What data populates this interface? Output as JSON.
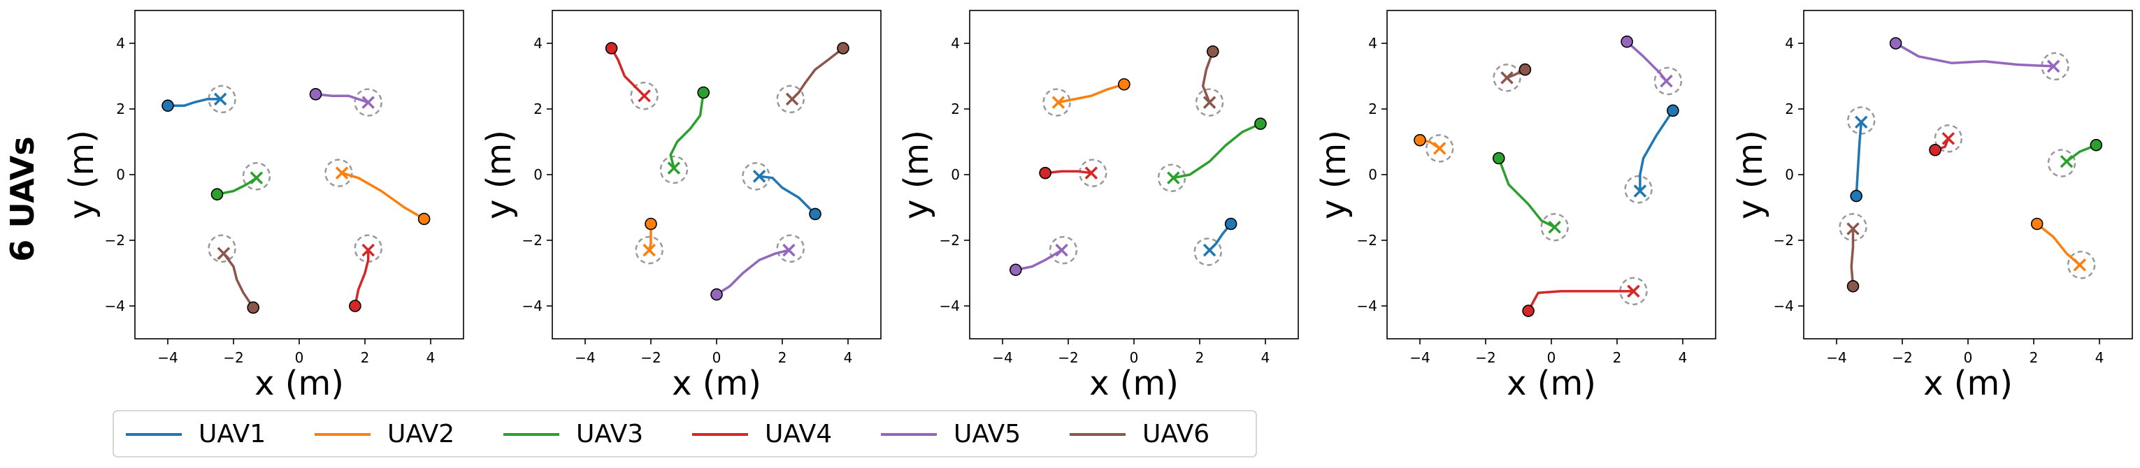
{
  "row_label": "6 UAVs",
  "legend": {
    "placement": "bottom-left",
    "entries": [
      {
        "name": "UAV1",
        "color": "#1f77b4"
      },
      {
        "name": "UAV2",
        "color": "#ff7f0e"
      },
      {
        "name": "UAV3",
        "color": "#2ca02c"
      },
      {
        "name": "UAV4",
        "color": "#d62728"
      },
      {
        "name": "UAV5",
        "color": "#9467bd"
      },
      {
        "name": "UAV6",
        "color": "#8c564b"
      }
    ]
  },
  "chart_data": [
    {
      "type": "line",
      "xlabel": "x (m)",
      "ylabel": "y (m)",
      "xlim": [
        -5,
        5
      ],
      "ylim": [
        -5,
        5
      ],
      "xticks": [
        -4,
        -2,
        0,
        2,
        4
      ],
      "yticks": [
        -4,
        -2,
        0,
        2,
        4
      ],
      "grid": false,
      "series": [
        {
          "name": "UAV1",
          "start": [
            -4.0,
            2.1
          ],
          "goal": [
            -2.35,
            2.3
          ],
          "path": [
            [
              -4.0,
              2.1
            ],
            [
              -3.5,
              2.1
            ],
            [
              -3.2,
              2.2
            ],
            [
              -2.8,
              2.3
            ],
            [
              -2.4,
              2.3
            ]
          ]
        },
        {
          "name": "UAV2",
          "start": [
            3.8,
            -1.35
          ],
          "goal": [
            1.2,
            0.05
          ],
          "path": [
            [
              3.8,
              -1.35
            ],
            [
              3.2,
              -1.0
            ],
            [
              2.5,
              -0.5
            ],
            [
              1.8,
              -0.1
            ],
            [
              1.3,
              0.05
            ]
          ]
        },
        {
          "name": "UAV3",
          "start": [
            -2.5,
            -0.6
          ],
          "goal": [
            -1.3,
            -0.05
          ],
          "path": [
            [
              -2.5,
              -0.6
            ],
            [
              -2.0,
              -0.5
            ],
            [
              -1.6,
              -0.3
            ],
            [
              -1.3,
              -0.1
            ]
          ]
        },
        {
          "name": "UAV4",
          "start": [
            1.7,
            -4.0
          ],
          "goal": [
            2.1,
            -2.25
          ],
          "path": [
            [
              1.7,
              -4.0
            ],
            [
              1.8,
              -3.5
            ],
            [
              2.0,
              -3.0
            ],
            [
              2.1,
              -2.6
            ],
            [
              2.1,
              -2.3
            ]
          ]
        },
        {
          "name": "UAV5",
          "start": [
            0.5,
            2.45
          ],
          "goal": [
            2.1,
            2.2
          ],
          "path": [
            [
              0.5,
              2.45
            ],
            [
              1.0,
              2.4
            ],
            [
              1.5,
              2.4
            ],
            [
              1.8,
              2.3
            ],
            [
              2.1,
              2.2
            ]
          ]
        },
        {
          "name": "UAV6",
          "start": [
            -1.4,
            -4.05
          ],
          "goal": [
            -2.35,
            -2.25
          ],
          "path": [
            [
              -1.4,
              -4.05
            ],
            [
              -1.7,
              -3.6
            ],
            [
              -1.9,
              -3.2
            ],
            [
              -2.0,
              -2.8
            ],
            [
              -2.3,
              -2.4
            ]
          ]
        }
      ]
    },
    {
      "type": "line",
      "xlabel": "x (m)",
      "ylabel": "y (m)",
      "xlim": [
        -5,
        5
      ],
      "ylim": [
        -5,
        5
      ],
      "xticks": [
        -4,
        -2,
        0,
        2,
        4
      ],
      "yticks": [
        -4,
        -2,
        0,
        2,
        4
      ],
      "grid": false,
      "series": [
        {
          "name": "UAV1",
          "start": [
            3.0,
            -1.2
          ],
          "goal": [
            1.2,
            -0.05
          ],
          "path": [
            [
              3.0,
              -1.2
            ],
            [
              2.5,
              -0.7
            ],
            [
              2.0,
              -0.4
            ],
            [
              1.7,
              -0.1
            ],
            [
              1.3,
              -0.05
            ]
          ]
        },
        {
          "name": "UAV2",
          "start": [
            -2.0,
            -1.5
          ],
          "goal": [
            -2.05,
            -2.3
          ],
          "path": [
            [
              -2.0,
              -1.5
            ],
            [
              -2.0,
              -1.8
            ],
            [
              -2.0,
              -2.1
            ],
            [
              -2.05,
              -2.3
            ]
          ]
        },
        {
          "name": "UAV3",
          "start": [
            -0.4,
            2.5
          ],
          "goal": [
            -1.3,
            0.15
          ],
          "path": [
            [
              -0.4,
              2.5
            ],
            [
              -0.5,
              1.8
            ],
            [
              -0.8,
              1.4
            ],
            [
              -1.2,
              1.0
            ],
            [
              -1.4,
              0.6
            ],
            [
              -1.3,
              0.2
            ]
          ]
        },
        {
          "name": "UAV4",
          "start": [
            -3.2,
            3.85
          ],
          "goal": [
            -2.2,
            2.4
          ],
          "path": [
            [
              -3.2,
              3.85
            ],
            [
              -3.0,
              3.5
            ],
            [
              -2.8,
              3.0
            ],
            [
              -2.5,
              2.7
            ],
            [
              -2.2,
              2.4
            ]
          ]
        },
        {
          "name": "UAV5",
          "start": [
            0.0,
            -3.65
          ],
          "goal": [
            2.25,
            -2.25
          ],
          "path": [
            [
              0.0,
              -3.65
            ],
            [
              0.4,
              -3.4
            ],
            [
              0.8,
              -3.0
            ],
            [
              1.3,
              -2.6
            ],
            [
              1.8,
              -2.4
            ],
            [
              2.2,
              -2.3
            ]
          ]
        },
        {
          "name": "UAV6",
          "start": [
            3.85,
            3.85
          ],
          "goal": [
            2.25,
            2.3
          ],
          "path": [
            [
              3.85,
              3.85
            ],
            [
              3.4,
              3.5
            ],
            [
              3.0,
              3.2
            ],
            [
              2.7,
              2.8
            ],
            [
              2.5,
              2.5
            ],
            [
              2.3,
              2.3
            ]
          ]
        }
      ]
    },
    {
      "type": "line",
      "xlabel": "x (m)",
      "ylabel": "y (m)",
      "xlim": [
        -5,
        5
      ],
      "ylim": [
        -5,
        5
      ],
      "xticks": [
        -4,
        -2,
        0,
        2,
        4
      ],
      "yticks": [
        -4,
        -2,
        0,
        2,
        4
      ],
      "grid": false,
      "series": [
        {
          "name": "UAV1",
          "start": [
            2.95,
            -1.5
          ],
          "goal": [
            2.25,
            -2.35
          ],
          "path": [
            [
              2.95,
              -1.5
            ],
            [
              2.7,
              -1.8
            ],
            [
              2.5,
              -2.1
            ],
            [
              2.3,
              -2.3
            ]
          ]
        },
        {
          "name": "UAV2",
          "start": [
            -0.3,
            2.75
          ],
          "goal": [
            -2.35,
            2.2
          ],
          "path": [
            [
              -0.3,
              2.75
            ],
            [
              -0.8,
              2.6
            ],
            [
              -1.3,
              2.4
            ],
            [
              -1.8,
              2.3
            ],
            [
              -2.3,
              2.2
            ]
          ]
        },
        {
          "name": "UAV3",
          "start": [
            3.85,
            1.55
          ],
          "goal": [
            1.15,
            -0.1
          ],
          "path": [
            [
              3.85,
              1.55
            ],
            [
              3.3,
              1.3
            ],
            [
              2.8,
              0.9
            ],
            [
              2.3,
              0.4
            ],
            [
              1.7,
              0.0
            ],
            [
              1.2,
              -0.1
            ]
          ]
        },
        {
          "name": "UAV4",
          "start": [
            -2.7,
            0.05
          ],
          "goal": [
            -1.25,
            0.05
          ],
          "path": [
            [
              -2.7,
              0.05
            ],
            [
              -2.2,
              0.1
            ],
            [
              -1.7,
              0.1
            ],
            [
              -1.3,
              0.05
            ]
          ]
        },
        {
          "name": "UAV5",
          "start": [
            -3.6,
            -2.9
          ],
          "goal": [
            -2.15,
            -2.3
          ],
          "path": [
            [
              -3.6,
              -2.9
            ],
            [
              -3.1,
              -2.8
            ],
            [
              -2.7,
              -2.6
            ],
            [
              -2.2,
              -2.3
            ]
          ]
        },
        {
          "name": "UAV6",
          "start": [
            2.4,
            3.75
          ],
          "goal": [
            2.3,
            2.2
          ],
          "path": [
            [
              2.4,
              3.75
            ],
            [
              2.2,
              3.2
            ],
            [
              2.1,
              2.7
            ],
            [
              2.3,
              2.2
            ]
          ]
        }
      ]
    },
    {
      "type": "line",
      "xlabel": "x (m)",
      "ylabel": "y (m)",
      "xlim": [
        -5,
        5
      ],
      "ylim": [
        -5,
        5
      ],
      "xticks": [
        -4,
        -2,
        0,
        2,
        4
      ],
      "yticks": [
        -4,
        -2,
        0,
        2,
        4
      ],
      "grid": false,
      "series": [
        {
          "name": "UAV1",
          "start": [
            3.7,
            1.95
          ],
          "goal": [
            2.65,
            -0.45
          ],
          "path": [
            [
              3.7,
              1.95
            ],
            [
              3.2,
              1.2
            ],
            [
              2.8,
              0.5
            ],
            [
              2.7,
              0.0
            ],
            [
              2.7,
              -0.5
            ]
          ]
        },
        {
          "name": "UAV2",
          "start": [
            -4.0,
            1.05
          ],
          "goal": [
            -3.4,
            0.8
          ],
          "path": [
            [
              -4.0,
              1.05
            ],
            [
              -3.7,
              1.0
            ],
            [
              -3.4,
              0.8
            ]
          ]
        },
        {
          "name": "UAV3",
          "start": [
            -1.6,
            0.5
          ],
          "goal": [
            0.1,
            -1.6
          ],
          "path": [
            [
              -1.6,
              0.5
            ],
            [
              -1.3,
              -0.3
            ],
            [
              -0.7,
              -0.9
            ],
            [
              -0.3,
              -1.4
            ],
            [
              0.1,
              -1.6
            ]
          ]
        },
        {
          "name": "UAV4",
          "start": [
            -0.7,
            -4.15
          ],
          "goal": [
            2.5,
            -3.55
          ],
          "path": [
            [
              -0.7,
              -4.15
            ],
            [
              -0.4,
              -3.6
            ],
            [
              0.3,
              -3.55
            ],
            [
              1.0,
              -3.55
            ],
            [
              1.8,
              -3.55
            ],
            [
              2.5,
              -3.55
            ]
          ]
        },
        {
          "name": "UAV5",
          "start": [
            2.3,
            4.05
          ],
          "goal": [
            3.55,
            2.85
          ],
          "path": [
            [
              2.3,
              4.05
            ],
            [
              2.8,
              3.6
            ],
            [
              3.3,
              3.1
            ],
            [
              3.5,
              2.85
            ]
          ]
        },
        {
          "name": "UAV6",
          "start": [
            -0.8,
            3.2
          ],
          "goal": [
            -1.35,
            2.95
          ],
          "path": [
            [
              -0.8,
              3.2
            ],
            [
              -1.1,
              3.05
            ],
            [
              -1.35,
              2.95
            ]
          ]
        }
      ]
    },
    {
      "type": "line",
      "xlabel": "x (m)",
      "ylabel": "y (m)",
      "xlim": [
        -5,
        5
      ],
      "ylim": [
        -5,
        5
      ],
      "xticks": [
        -4,
        -2,
        0,
        2,
        4
      ],
      "yticks": [
        -4,
        -2,
        0,
        2,
        4
      ],
      "grid": false,
      "series": [
        {
          "name": "UAV1",
          "start": [
            -3.4,
            -0.65
          ],
          "goal": [
            -3.25,
            1.65
          ],
          "path": [
            [
              -3.4,
              -0.65
            ],
            [
              -3.35,
              0.2
            ],
            [
              -3.3,
              1.0
            ],
            [
              -3.25,
              1.6
            ]
          ]
        },
        {
          "name": "UAV2",
          "start": [
            2.1,
            -1.5
          ],
          "goal": [
            3.45,
            -2.75
          ],
          "path": [
            [
              2.1,
              -1.5
            ],
            [
              2.6,
              -1.9
            ],
            [
              3.0,
              -2.4
            ],
            [
              3.4,
              -2.75
            ]
          ]
        },
        {
          "name": "UAV3",
          "start": [
            3.9,
            0.9
          ],
          "goal": [
            2.85,
            0.35
          ],
          "path": [
            [
              3.9,
              0.9
            ],
            [
              3.4,
              0.7
            ],
            [
              3.0,
              0.4
            ]
          ]
        },
        {
          "name": "UAV4",
          "start": [
            -1.0,
            0.75
          ],
          "goal": [
            -0.6,
            1.1
          ],
          "path": [
            [
              -1.0,
              0.75
            ],
            [
              -0.7,
              0.85
            ],
            [
              -0.6,
              1.1
            ]
          ]
        },
        {
          "name": "UAV5",
          "start": [
            -2.2,
            4.0
          ],
          "goal": [
            2.65,
            3.3
          ],
          "path": [
            [
              -2.2,
              4.0
            ],
            [
              -1.5,
              3.6
            ],
            [
              -0.5,
              3.4
            ],
            [
              0.5,
              3.45
            ],
            [
              1.5,
              3.35
            ],
            [
              2.6,
              3.3
            ]
          ]
        },
        {
          "name": "UAV6",
          "start": [
            -3.5,
            -3.4
          ],
          "goal": [
            -3.5,
            -1.6
          ],
          "path": [
            [
              -3.5,
              -3.4
            ],
            [
              -3.55,
              -2.8
            ],
            [
              -3.5,
              -2.2
            ],
            [
              -3.5,
              -1.65
            ]
          ]
        }
      ]
    }
  ]
}
